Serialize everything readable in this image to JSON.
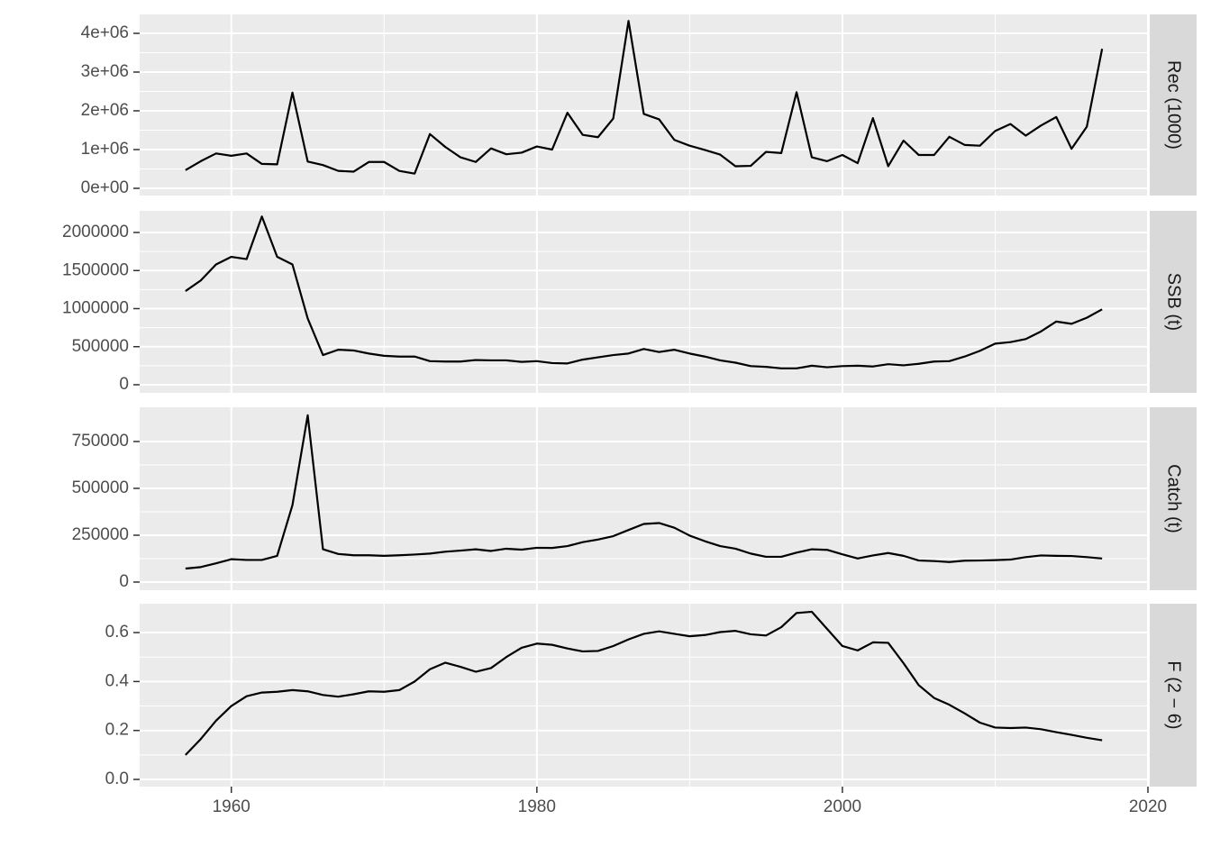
{
  "chart_data": [
    {
      "type": "line",
      "title": "Rec (1000)",
      "color": "#000000",
      "grid": true,
      "x": [
        1957,
        1958,
        1959,
        1960,
        1961,
        1962,
        1963,
        1964,
        1965,
        1966,
        1967,
        1968,
        1969,
        1970,
        1971,
        1972,
        1973,
        1974,
        1975,
        1976,
        1977,
        1978,
        1979,
        1980,
        1981,
        1982,
        1983,
        1984,
        1985,
        1986,
        1987,
        1988,
        1989,
        1990,
        1991,
        1992,
        1993,
        1994,
        1995,
        1996,
        1997,
        1998,
        1999,
        2000,
        2001,
        2002,
        2003,
        2004,
        2005,
        2006,
        2007,
        2008,
        2009,
        2010,
        2011,
        2012,
        2013,
        2014,
        2015,
        2016,
        2017
      ],
      "values": [
        470000,
        700000,
        900000,
        840000,
        900000,
        630000,
        620000,
        2470000,
        690000,
        600000,
        450000,
        430000,
        680000,
        680000,
        450000,
        380000,
        1400000,
        1070000,
        800000,
        680000,
        1030000,
        880000,
        920000,
        1080000,
        1000000,
        1950000,
        1380000,
        1320000,
        1800000,
        4320000,
        1920000,
        1780000,
        1250000,
        1100000,
        990000,
        870000,
        570000,
        580000,
        940000,
        910000,
        2480000,
        800000,
        700000,
        860000,
        650000,
        1810000,
        570000,
        1230000,
        860000,
        860000,
        1330000,
        1120000,
        1100000,
        1480000,
        1660000,
        1360000,
        1620000,
        1840000,
        1020000,
        1590000,
        3600000
      ],
      "xlim": [
        1954,
        2020
      ],
      "xticks": [
        1960,
        1980,
        2000,
        2020
      ],
      "ylim": [
        -186000,
        4488000
      ],
      "yticks": [
        {
          "value": 0,
          "label": "0e+00"
        },
        {
          "value": 1000000,
          "label": "1e+06"
        },
        {
          "value": 2000000,
          "label": "2e+06"
        },
        {
          "value": 3000000,
          "label": "3e+06"
        },
        {
          "value": 4000000,
          "label": "4e+06"
        }
      ]
    },
    {
      "type": "line",
      "title": "SSB (t)",
      "color": "#000000",
      "grid": true,
      "x": [
        1957,
        1958,
        1959,
        1960,
        1961,
        1962,
        1963,
        1964,
        1965,
        1966,
        1967,
        1968,
        1969,
        1970,
        1971,
        1972,
        1973,
        1974,
        1975,
        1976,
        1977,
        1978,
        1979,
        1980,
        1981,
        1982,
        1983,
        1984,
        1985,
        1986,
        1987,
        1988,
        1989,
        1990,
        1991,
        1992,
        1993,
        1994,
        1995,
        1996,
        1997,
        1998,
        1999,
        2000,
        2001,
        2002,
        2003,
        2004,
        2005,
        2006,
        2007,
        2008,
        2009,
        2010,
        2011,
        2012,
        2013,
        2014,
        2015,
        2016,
        2017
      ],
      "values": [
        1230000,
        1370000,
        1580000,
        1680000,
        1650000,
        2210000,
        1680000,
        1580000,
        870000,
        390000,
        460000,
        450000,
        410000,
        380000,
        370000,
        370000,
        310000,
        305000,
        305000,
        325000,
        320000,
        320000,
        300000,
        310000,
        285000,
        280000,
        330000,
        360000,
        390000,
        410000,
        470000,
        430000,
        460000,
        410000,
        370000,
        320000,
        290000,
        245000,
        235000,
        215000,
        215000,
        250000,
        230000,
        245000,
        250000,
        240000,
        270000,
        255000,
        275000,
        305000,
        310000,
        370000,
        445000,
        540000,
        560000,
        600000,
        700000,
        830000,
        800000,
        880000,
        990000
      ],
      "xlim": [
        1954,
        2020
      ],
      "xticks": [
        1960,
        1980,
        2000,
        2020
      ],
      "ylim": [
        -106500,
        2284000
      ],
      "yticks": [
        0,
        500000,
        1000000,
        1500000,
        2000000
      ]
    },
    {
      "type": "line",
      "title": "Catch (t)",
      "color": "#000000",
      "grid": true,
      "x": [
        1957,
        1958,
        1959,
        1960,
        1961,
        1962,
        1963,
        1964,
        1965,
        1966,
        1967,
        1968,
        1969,
        1970,
        1971,
        1972,
        1973,
        1974,
        1975,
        1976,
        1977,
        1978,
        1979,
        1980,
        1981,
        1982,
        1983,
        1984,
        1985,
        1986,
        1987,
        1988,
        1989,
        1990,
        1991,
        1992,
        1993,
        1994,
        1995,
        1996,
        1997,
        1998,
        1999,
        2000,
        2001,
        2002,
        2003,
        2004,
        2005,
        2006,
        2007,
        2008,
        2009,
        2010,
        2011,
        2012,
        2013,
        2014,
        2015,
        2016,
        2017
      ],
      "values": [
        72000,
        80000,
        100000,
        122000,
        118000,
        118000,
        140000,
        410000,
        890000,
        175000,
        150000,
        143000,
        143000,
        140000,
        143000,
        147000,
        152000,
        162000,
        168000,
        175000,
        166000,
        178000,
        173000,
        183000,
        182000,
        192000,
        213000,
        227000,
        245000,
        278000,
        310000,
        315000,
        290000,
        248000,
        218000,
        192000,
        178000,
        152000,
        135000,
        135000,
        157000,
        175000,
        172000,
        148000,
        126000,
        142000,
        155000,
        140000,
        115000,
        112000,
        107000,
        114000,
        115000,
        117000,
        120000,
        133000,
        142000,
        140000,
        139000,
        133000,
        126000
      ],
      "xlim": [
        1954,
        2020
      ],
      "xticks": [
        1960,
        1980,
        2000,
        2020
      ],
      "ylim": [
        -43300,
        932700
      ],
      "yticks": [
        0,
        250000,
        500000,
        750000
      ]
    },
    {
      "type": "line",
      "title": "F (2 − 6)",
      "color": "#000000",
      "grid": true,
      "x": [
        1957,
        1958,
        1959,
        1960,
        1961,
        1962,
        1963,
        1964,
        1965,
        1966,
        1967,
        1968,
        1969,
        1970,
        1971,
        1972,
        1973,
        1974,
        1975,
        1976,
        1977,
        1978,
        1979,
        1980,
        1981,
        1982,
        1983,
        1984,
        1985,
        1986,
        1987,
        1988,
        1989,
        1990,
        1991,
        1992,
        1993,
        1994,
        1995,
        1996,
        1997,
        1998,
        1999,
        2000,
        2001,
        2002,
        2003,
        2004,
        2005,
        2006,
        2007,
        2008,
        2009,
        2010,
        2011,
        2012,
        2013,
        2014,
        2015,
        2016,
        2017
      ],
      "values": [
        0.1,
        0.165,
        0.24,
        0.3,
        0.34,
        0.355,
        0.358,
        0.365,
        0.36,
        0.345,
        0.338,
        0.348,
        0.36,
        0.358,
        0.365,
        0.4,
        0.45,
        0.477,
        0.46,
        0.44,
        0.455,
        0.5,
        0.538,
        0.555,
        0.55,
        0.535,
        0.523,
        0.525,
        0.545,
        0.572,
        0.595,
        0.605,
        0.595,
        0.585,
        0.59,
        0.602,
        0.607,
        0.593,
        0.588,
        0.622,
        0.68,
        0.685,
        0.615,
        0.545,
        0.527,
        0.56,
        0.558,
        0.475,
        0.385,
        0.333,
        0.305,
        0.27,
        0.232,
        0.212,
        0.21,
        0.212,
        0.205,
        0.193,
        0.182,
        0.17,
        0.16
      ],
      "xlim": [
        1954,
        2020
      ],
      "xticks": [
        1960,
        1980,
        2000,
        2020
      ],
      "ylim": [
        -0.0294,
        0.718
      ],
      "yticks": [
        {
          "value": 0,
          "label": "0.0"
        },
        0.2,
        0.4,
        0.6
      ]
    }
  ]
}
